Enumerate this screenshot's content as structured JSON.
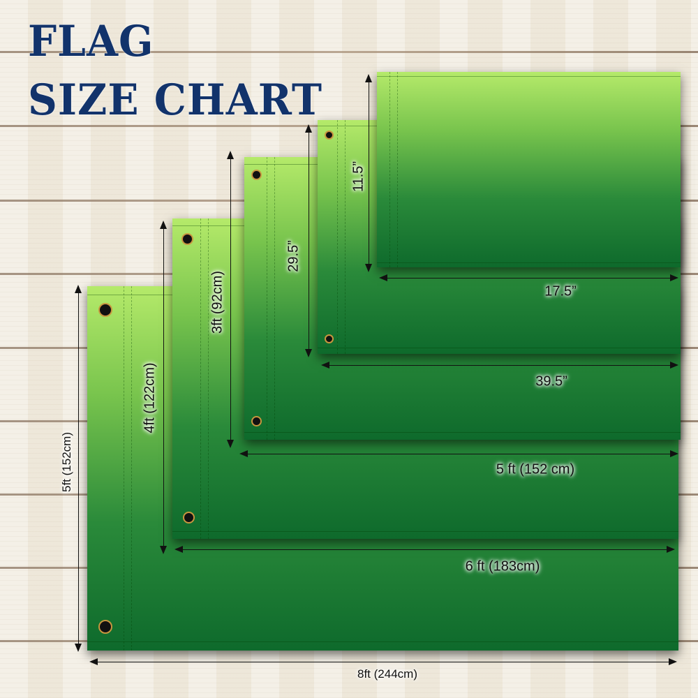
{
  "title": {
    "line1": "FLAG",
    "line2": "SIZE CHART"
  },
  "colors": {
    "title": "#12336b",
    "flag_top": "#b5ea6a",
    "flag_bottom": "#0e6a2c",
    "background": "#f0ebdf",
    "grommet_ring": "#c8963f"
  },
  "flags": [
    {
      "height_label": "5ft (152cm)",
      "width_label": "8ft (244cm)"
    },
    {
      "height_label": "4ft (122cm)",
      "width_label": "6 ft (183cm)"
    },
    {
      "height_label": "3ft (92cm)",
      "width_label": "5 ft (152 cm)"
    },
    {
      "height_label": "29.5”",
      "width_label": "39.5”"
    },
    {
      "height_label": "11.5”",
      "width_label": "17.5”"
    }
  ]
}
